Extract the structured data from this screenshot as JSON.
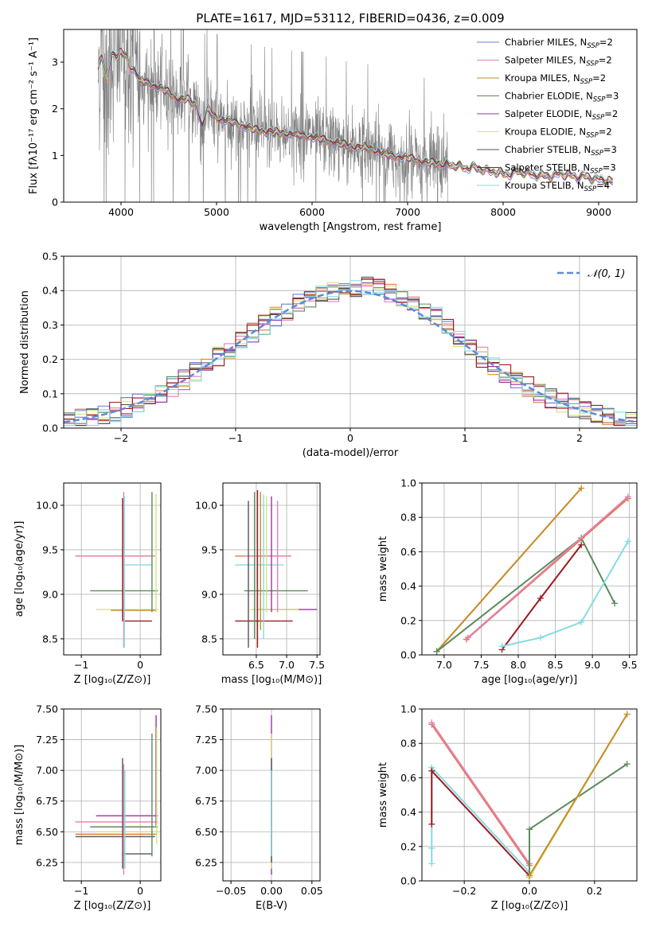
{
  "figure": {
    "title": "PLATE=1617, MJD=53112, FIBERID=0436, z=0.009"
  },
  "colors": {
    "Chabrier MILES": "#6b7fd7",
    "Salpeter MILES": "#e57fb0",
    "Kroupa MILES": "#c88a2a",
    "Chabrier ELODIE": "#5a8a5a",
    "Salpeter ELODIE": "#9932a8",
    "Kroupa ELODIE": "#d8e27a",
    "Chabrier STELIB": "#555555",
    "Salpeter STELIB": "#9b1b20",
    "Kroupa STELIB": "#86dbe0",
    "data": "#808080",
    "normal": "#5b8bd9",
    "orange": "#e07a45"
  },
  "chart_data": [
    {
      "id": "spectrum",
      "type": "line",
      "title": "PLATE=1617, MJD=53112, FIBERID=0436, z=0.009",
      "xlabel": "wavelength [Angstrom, rest frame]",
      "ylabel": "Flux [fλ10⁻¹⁷ erg cm⁻² s⁻¹ A⁻¹]",
      "xlim": [
        3400,
        9400
      ],
      "ylim": [
        0,
        3.7
      ],
      "xticks": [
        4000,
        5000,
        6000,
        7000,
        8000,
        9000
      ],
      "yticks": [
        0,
        1,
        2,
        3
      ],
      "grid": false,
      "legend_position": "top-right",
      "legend": [
        {
          "label": "Chabrier MILES, N",
          "sub": "SSP",
          "suffix": "=2"
        },
        {
          "label": "Salpeter MILES, N",
          "sub": "SSP",
          "suffix": "=2"
        },
        {
          "label": "Kroupa MILES, N",
          "sub": "SSP",
          "suffix": "=2"
        },
        {
          "label": "Chabrier ELODIE, N",
          "sub": "SSP",
          "suffix": "=3"
        },
        {
          "label": "Salpeter ELODIE, N",
          "sub": "SSP",
          "suffix": "=2"
        },
        {
          "label": "Kroupa ELODIE, N",
          "sub": "SSP",
          "suffix": "=2"
        },
        {
          "label": "Chabrier STELIB, N",
          "sub": "SSP",
          "suffix": "=3"
        },
        {
          "label": "Salpeter STELIB, N",
          "sub": "SSP",
          "suffix": "=3"
        },
        {
          "label": "Kroupa STELIB, N",
          "sub": "SSP",
          "suffix": "=4"
        }
      ],
      "data_range": [
        3760,
        7420
      ],
      "model_trend": {
        "x": [
          3760,
          3800,
          3850,
          3900,
          3950,
          4000,
          4050,
          4100,
          4150,
          4200,
          4300,
          4400,
          4500,
          4600,
          4700,
          4800,
          4850,
          4900,
          5000,
          5200,
          5400,
          5600,
          5800,
          6000,
          6200,
          6400,
          6600,
          6800,
          7000,
          7200,
          7400,
          7600,
          7800,
          8000,
          8200,
          8400,
          8600,
          8800,
          9000,
          9150
        ],
        "y": [
          2.9,
          3.1,
          2.6,
          3.2,
          3.1,
          3.2,
          3.15,
          2.9,
          2.8,
          2.6,
          2.55,
          2.45,
          2.35,
          2.2,
          2.2,
          2.05,
          1.6,
          2.0,
          1.8,
          1.7,
          1.55,
          1.5,
          1.45,
          1.4,
          1.3,
          1.2,
          1.15,
          1.0,
          0.95,
          0.85,
          0.8,
          0.75,
          0.7,
          0.6,
          0.65,
          0.55,
          0.6,
          0.55,
          0.5,
          0.42
        ]
      }
    },
    {
      "id": "residual-histogram",
      "type": "line",
      "xlabel": "(data-model)/error",
      "ylabel": "Normed distribution",
      "xlim": [
        -2.5,
        2.5
      ],
      "ylim": [
        0,
        0.5
      ],
      "xticks": [
        -2,
        -1,
        0,
        1,
        2
      ],
      "yticks": [
        0.0,
        0.1,
        0.2,
        0.3,
        0.4,
        0.5
      ],
      "grid": true,
      "legend_position": "top-right",
      "normal_label": "𝒩(0, 1)",
      "bin_width": 0.1
    },
    {
      "id": "age-vs-z",
      "type": "scatter",
      "xlabel": "Z [log₁₀(Z/Z⊙)]",
      "ylabel": "age  [log₁₀(age/yr)]",
      "xlim": [
        -1.3,
        0.35
      ],
      "ylim": [
        8.32,
        10.25
      ],
      "xticks": [
        -1,
        0
      ],
      "yticks": [
        8.5,
        9.0,
        9.5,
        10.0
      ],
      "grid": true,
      "hbars": [
        {
          "y": 9.43,
          "x": [
            -1.1,
            0.25
          ],
          "color": "orange"
        },
        {
          "y": 9.43,
          "x": [
            -1.1,
            0.25
          ],
          "color": "Salpeter MILES"
        },
        {
          "y": 9.33,
          "x": [
            -0.3,
            0.2
          ],
          "color": "Kroupa STELIB"
        },
        {
          "y": 9.04,
          "x": [
            -0.85,
            0.3
          ],
          "color": "Chabrier ELODIE"
        },
        {
          "y": 8.83,
          "x": [
            -0.75,
            0.3
          ],
          "color": "Kroupa ELODIE"
        },
        {
          "y": 8.82,
          "x": [
            -0.5,
            0.28
          ],
          "color": "Kroupa MILES"
        },
        {
          "y": 8.7,
          "x": [
            -0.3,
            0.2
          ],
          "color": "Salpeter STELIB"
        }
      ],
      "vbars": [
        {
          "x": -0.28,
          "y": [
            8.4,
            10.15
          ],
          "color": "Salpeter MILES"
        },
        {
          "x": -0.3,
          "y": [
            8.7,
            10.08
          ],
          "color": "Salpeter STELIB"
        },
        {
          "x": -0.27,
          "y": [
            8.4,
            10.1
          ],
          "color": "Kroupa STELIB"
        },
        {
          "x": 0.2,
          "y": [
            8.8,
            10.15
          ],
          "color": "Chabrier ELODIE"
        },
        {
          "x": 0.27,
          "y": [
            8.8,
            10.13
          ],
          "color": "Kroupa ELODIE"
        }
      ]
    },
    {
      "id": "age-vs-mass",
      "type": "scatter",
      "xlabel": "mass [log₁₀(M/M⊙)]",
      "ylabel": "",
      "xlim": [
        5.95,
        7.55
      ],
      "ylim": [
        8.32,
        10.25
      ],
      "xticks": [
        6.5,
        7.0,
        7.5
      ],
      "yticks": [
        8.5,
        9.0,
        9.5,
        10.0
      ],
      "grid": true,
      "hbars": [
        {
          "y": 9.43,
          "x": [
            6.15,
            7.05
          ],
          "color": "orange"
        },
        {
          "y": 9.43,
          "x": [
            6.3,
            7.08
          ],
          "color": "Salpeter MILES"
        },
        {
          "y": 9.33,
          "x": [
            6.15,
            6.95
          ],
          "color": "Kroupa STELIB"
        },
        {
          "y": 9.04,
          "x": [
            6.3,
            7.35
          ],
          "color": "Chabrier ELODIE"
        },
        {
          "y": 8.83,
          "x": [
            6.5,
            7.5
          ],
          "color": "Salpeter ELODIE"
        },
        {
          "y": 8.83,
          "x": [
            6.4,
            7.2
          ],
          "color": "Kroupa ELODIE"
        },
        {
          "y": 8.7,
          "x": [
            6.15,
            7.1
          ],
          "color": "Salpeter STELIB"
        }
      ],
      "vbars": [
        {
          "x": 6.37,
          "y": [
            8.4,
            10.05
          ],
          "color": "Chabrier STELIB"
        },
        {
          "x": 6.47,
          "y": [
            8.5,
            10.15
          ],
          "color": "Chabrier ELODIE"
        },
        {
          "x": 6.52,
          "y": [
            8.4,
            10.17
          ],
          "color": "Salpeter STELIB"
        },
        {
          "x": 6.57,
          "y": [
            8.6,
            10.15
          ],
          "color": "Kroupa MILES"
        },
        {
          "x": 6.62,
          "y": [
            8.5,
            10.12
          ],
          "color": "Kroupa STELIB"
        },
        {
          "x": 6.67,
          "y": [
            8.8,
            10.1
          ],
          "color": "Kroupa ELODIE"
        },
        {
          "x": 6.75,
          "y": [
            8.8,
            10.1
          ],
          "color": "Salpeter ELODIE"
        },
        {
          "x": 6.85,
          "y": [
            8.8,
            10.05
          ],
          "color": "Salpeter MILES"
        }
      ]
    },
    {
      "id": "mass-weight-vs-age",
      "type": "line",
      "xlabel": "age  [log₁₀(age/yr)]",
      "ylabel": "mass weight",
      "xlim": [
        6.7,
        9.6
      ],
      "ylim": [
        0,
        1.0
      ],
      "xticks": [
        7.0,
        7.5,
        8.0,
        8.5,
        9.0,
        9.5
      ],
      "yticks": [
        0.0,
        0.2,
        0.4,
        0.6,
        0.8,
        1.0
      ],
      "grid": true,
      "series": [
        {
          "color": "Kroupa ELODIE",
          "x": [
            6.9,
            8.85
          ],
          "y": [
            0.02,
            0.97
          ]
        },
        {
          "color": "Kroupa MILES",
          "x": [
            6.9,
            8.85
          ],
          "y": [
            0.02,
            0.97
          ]
        },
        {
          "color": "Chabrier ELODIE",
          "x": [
            6.9,
            8.85,
            9.3
          ],
          "y": [
            0.02,
            0.68,
            0.3
          ]
        },
        {
          "color": "orange",
          "x": [
            7.3,
            9.48
          ],
          "y": [
            0.09,
            0.91
          ]
        },
        {
          "color": "Salpeter MILES",
          "x": [
            7.32,
            9.48
          ],
          "y": [
            0.1,
            0.92
          ]
        },
        {
          "color": "Salpeter STELIB",
          "x": [
            7.78,
            8.3,
            8.85
          ],
          "y": [
            0.03,
            0.33,
            0.64
          ]
        },
        {
          "color": "Kroupa STELIB",
          "x": [
            7.78,
            8.3,
            8.85,
            9.48
          ],
          "y": [
            0.05,
            0.1,
            0.19,
            0.66
          ]
        }
      ]
    },
    {
      "id": "mass-vs-z",
      "type": "scatter",
      "xlabel": "Z [log₁₀(Z/Z⊙)]",
      "ylabel": "mass [log₁₀(M/M⊙)]",
      "xlim": [
        -1.3,
        0.35
      ],
      "ylim": [
        6.1,
        7.5
      ],
      "xticks": [
        -1,
        0
      ],
      "yticks": [
        6.25,
        6.5,
        6.75,
        7.0,
        7.25,
        7.5
      ],
      "grid": true,
      "hbars": [
        {
          "y": 6.63,
          "x": [
            -0.75,
            0.3
          ],
          "color": "Salpeter ELODIE"
        },
        {
          "y": 6.58,
          "x": [
            -1.1,
            0.3
          ],
          "color": "Salpeter MILES"
        },
        {
          "y": 6.54,
          "x": [
            -0.85,
            0.3
          ],
          "color": "Chabrier ELODIE"
        },
        {
          "y": 6.5,
          "x": [
            -0.75,
            0.3
          ],
          "color": "Kroupa ELODIE"
        },
        {
          "y": 6.48,
          "x": [
            -1.1,
            0.28
          ],
          "color": "orange"
        },
        {
          "y": 6.46,
          "x": [
            -1.1,
            0.25
          ],
          "color": "Chabrier STELIB"
        },
        {
          "y": 6.32,
          "x": [
            -0.3,
            0.2
          ],
          "color": "Chabrier STELIB"
        }
      ],
      "vbars": [
        {
          "x": -0.3,
          "y": [
            6.2,
            7.1
          ],
          "color": "Chabrier STELIB"
        },
        {
          "x": -0.28,
          "y": [
            6.15,
            7.05
          ],
          "color": "Salpeter MILES"
        },
        {
          "x": -0.26,
          "y": [
            6.2,
            7.0
          ],
          "color": "Kroupa STELIB"
        },
        {
          "x": 0.2,
          "y": [
            6.3,
            7.3
          ],
          "color": "Chabrier ELODIE"
        },
        {
          "x": 0.27,
          "y": [
            6.55,
            7.45
          ],
          "color": "Salpeter ELODIE"
        },
        {
          "x": 0.28,
          "y": [
            6.4,
            7.35
          ],
          "color": "Kroupa ELODIE"
        }
      ]
    },
    {
      "id": "mass-vs-ebv",
      "type": "scatter",
      "xlabel": "E(B-V)",
      "ylabel": "",
      "xlim": [
        -0.06,
        0.06
      ],
      "ylim": [
        6.1,
        7.5
      ],
      "xticks": [
        -0.05,
        0.0,
        0.05
      ],
      "yticks": [
        6.25,
        6.5,
        6.75,
        7.0,
        7.25,
        7.5
      ],
      "grid": true,
      "vbars": [
        {
          "x": 0.0,
          "y": [
            6.15,
            7.45
          ],
          "color": "Salpeter ELODIE"
        },
        {
          "x": 0.0,
          "y": [
            6.2,
            7.3
          ],
          "color": "Kroupa ELODIE"
        },
        {
          "x": 0.0,
          "y": [
            6.25,
            7.1
          ],
          "color": "Chabrier STELIB"
        },
        {
          "x": 0.0,
          "y": [
            6.3,
            7.0
          ],
          "color": "Kroupa STELIB"
        }
      ]
    },
    {
      "id": "mass-weight-vs-z",
      "type": "line",
      "xlabel": "Z [log₁₀(Z/Z⊙)]",
      "ylabel": "mass weight",
      "xlim": [
        -0.33,
        0.33
      ],
      "ylim": [
        0,
        1.0
      ],
      "xticks": [
        -0.2,
        0.0,
        0.2
      ],
      "yticks": [
        0.0,
        0.2,
        0.4,
        0.6,
        0.8,
        1.0
      ],
      "grid": true,
      "series": [
        {
          "color": "orange",
          "x": [
            -0.3,
            0.0
          ],
          "y": [
            0.91,
            0.09
          ]
        },
        {
          "color": "Salpeter MILES",
          "x": [
            -0.3,
            0.0
          ],
          "y": [
            0.92,
            0.1
          ]
        },
        {
          "color": "Kroupa STELIB",
          "x": [
            -0.3,
            -0.3,
            -0.3,
            0.0
          ],
          "y": [
            0.1,
            0.19,
            0.66,
            0.05
          ]
        },
        {
          "color": "Salpeter STELIB",
          "x": [
            -0.3,
            -0.3,
            0.0
          ],
          "y": [
            0.33,
            0.64,
            0.03
          ]
        },
        {
          "color": "Chabrier ELODIE",
          "x": [
            0.0,
            0.0,
            0.3
          ],
          "y": [
            0.02,
            0.3,
            0.68
          ]
        },
        {
          "color": "Kroupa ELODIE",
          "x": [
            0.0,
            0.3
          ],
          "y": [
            0.02,
            0.97
          ]
        },
        {
          "color": "Kroupa MILES",
          "x": [
            0.0,
            0.3
          ],
          "y": [
            0.03,
            0.97
          ]
        }
      ]
    }
  ]
}
